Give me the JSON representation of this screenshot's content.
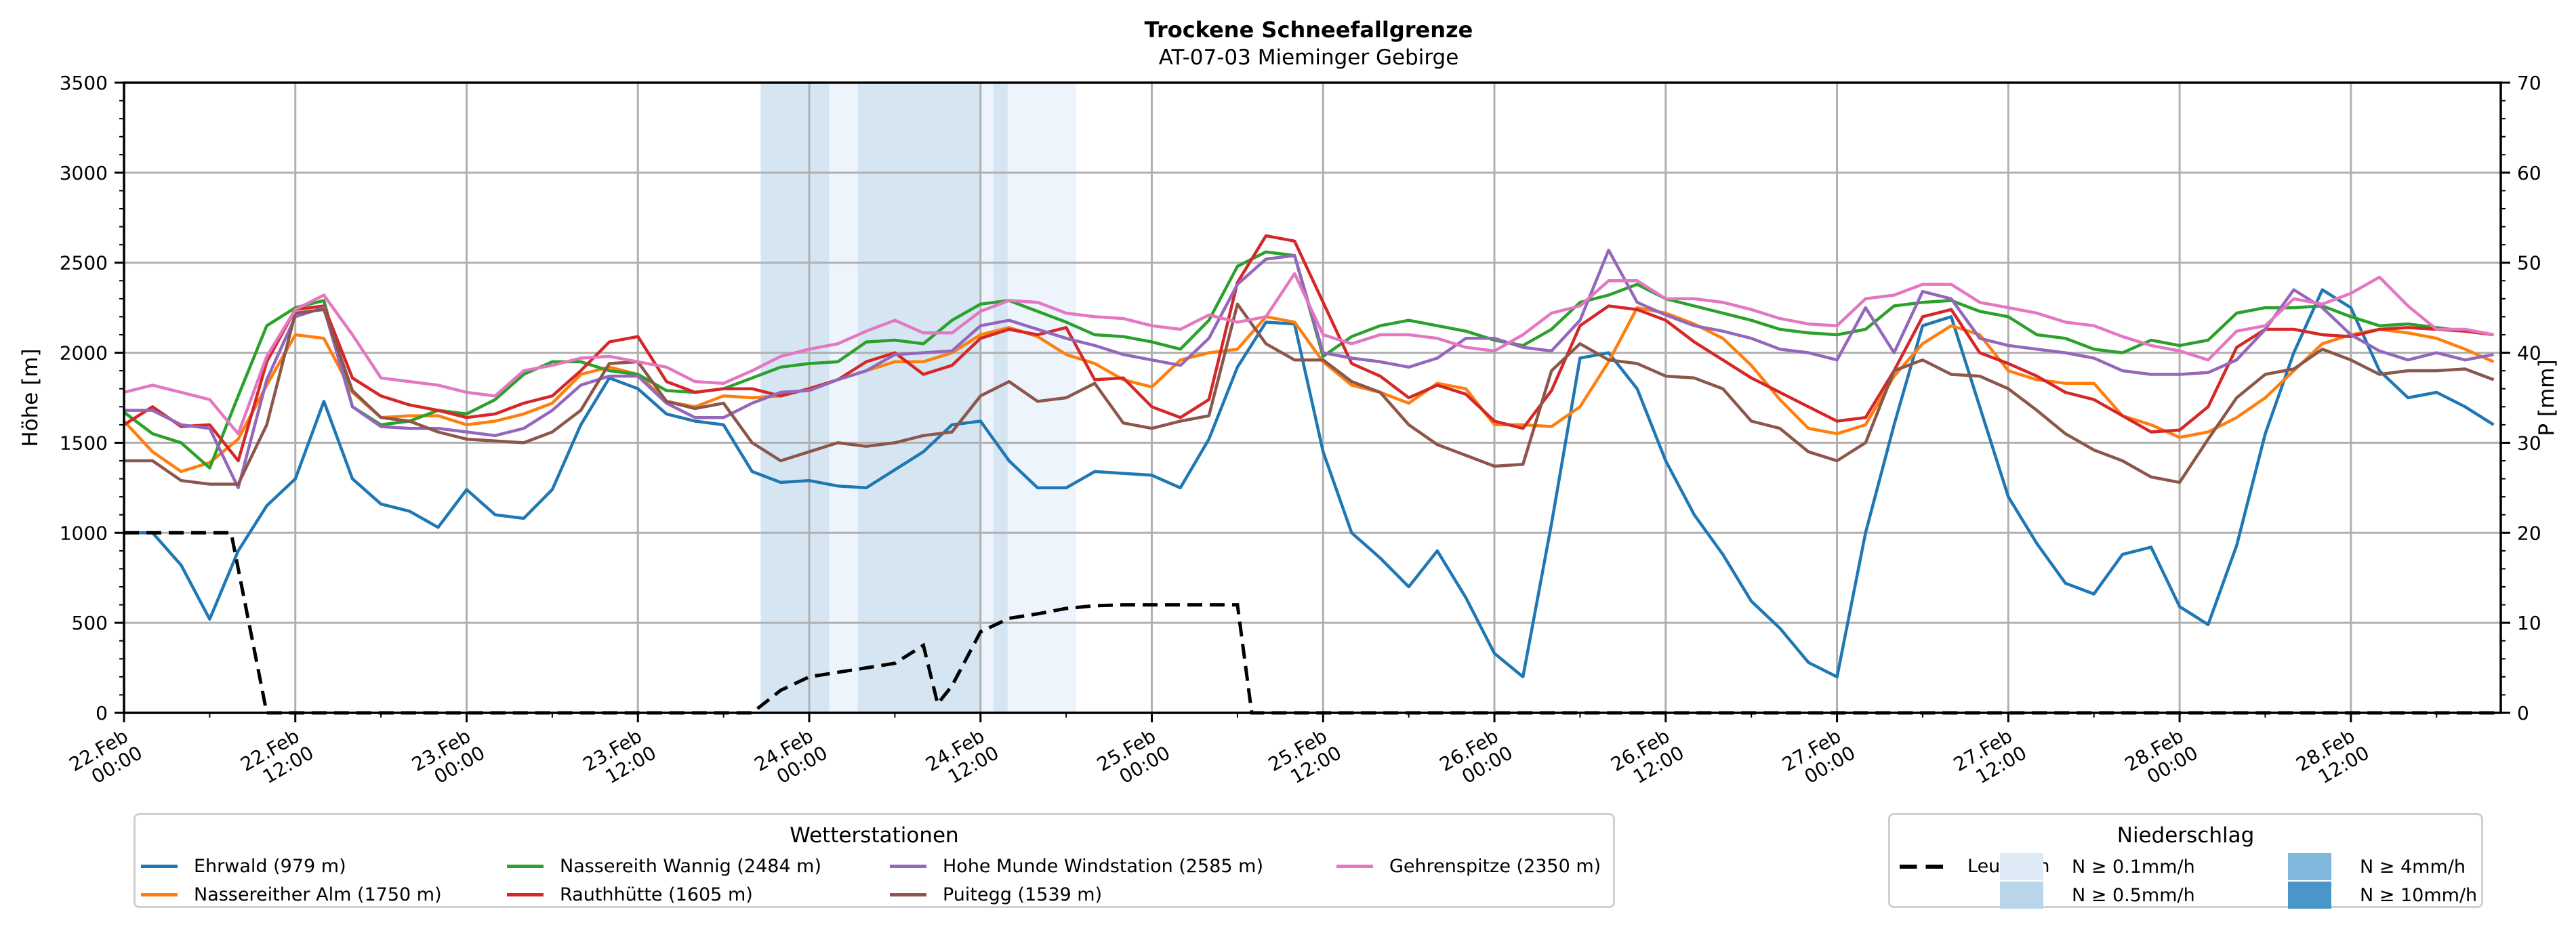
{
  "chart_data": {
    "type": "line",
    "title": "Trockene Schneefallgrenze",
    "subtitle": "AT-07-03 Mieminger Gebirge",
    "ylabel": "Höhe [m]",
    "y2label": "P [mm]",
    "ylim": [
      0,
      3500
    ],
    "y2lim": [
      0,
      70
    ],
    "xlim_hours": [
      0,
      166.5
    ],
    "grid": true,
    "y_ticks": [
      "0",
      "500",
      "1000",
      "1500",
      "2000",
      "2500",
      "3000",
      "3500"
    ],
    "y_tick_values": [
      0,
      500,
      1000,
      1500,
      2000,
      2500,
      3000,
      3500
    ],
    "y2_ticks": [
      "0",
      "10",
      "20",
      "30",
      "40",
      "50",
      "60",
      "70"
    ],
    "y2_tick_values": [
      0,
      10,
      20,
      30,
      40,
      50,
      60,
      70
    ],
    "x_ticks": [
      {
        "hour": 0,
        "line1": "22.Feb",
        "line2": "00:00"
      },
      {
        "hour": 12,
        "line1": "22.Feb",
        "line2": "12:00"
      },
      {
        "hour": 24,
        "line1": "23.Feb",
        "line2": "00:00"
      },
      {
        "hour": 36,
        "line1": "23.Feb",
        "line2": "12:00"
      },
      {
        "hour": 48,
        "line1": "24.Feb",
        "line2": "00:00"
      },
      {
        "hour": 60,
        "line1": "24.Feb",
        "line2": "12:00"
      },
      {
        "hour": 72,
        "line1": "25.Feb",
        "line2": "00:00"
      },
      {
        "hour": 84,
        "line1": "25.Feb",
        "line2": "12:00"
      },
      {
        "hour": 96,
        "line1": "26.Feb",
        "line2": "00:00"
      },
      {
        "hour": 108,
        "line1": "26.Feb",
        "line2": "12:00"
      },
      {
        "hour": 120,
        "line1": "27.Feb",
        "line2": "00:00"
      },
      {
        "hour": 132,
        "line1": "27.Feb",
        "line2": "12:00"
      },
      {
        "hour": 144,
        "line1": "28.Feb",
        "line2": "00:00"
      },
      {
        "hour": 156,
        "line1": "28.Feb",
        "line2": "12:00"
      }
    ],
    "x_hours": [
      0,
      2,
      4,
      6,
      8,
      10,
      12,
      14,
      16,
      18,
      20,
      22,
      24,
      26,
      28,
      30,
      32,
      34,
      36,
      38,
      40,
      42,
      44,
      46,
      48,
      50,
      52,
      54,
      56,
      58,
      60,
      62,
      64,
      66,
      68,
      70,
      72,
      74,
      76,
      78,
      80,
      82,
      84,
      86,
      88,
      90,
      92,
      94,
      96,
      98,
      100,
      102,
      104,
      106,
      108,
      110,
      112,
      114,
      116,
      118,
      120,
      122,
      124,
      126,
      128,
      130,
      132,
      134,
      136,
      138,
      140,
      142,
      144,
      146,
      148,
      150,
      152,
      154,
      156,
      158,
      160,
      162,
      164,
      166
    ],
    "series": [
      {
        "name": "Ehrwald (979 m)",
        "color": "#1f77b4",
        "values": [
          1000,
          1000,
          820,
          520,
          900,
          1150,
          1300,
          1730,
          1300,
          1160,
          1120,
          1030,
          1240,
          1100,
          1080,
          1240,
          1600,
          1860,
          1800,
          1660,
          1620,
          1600,
          1340,
          1280,
          1290,
          1260,
          1250,
          1350,
          1450,
          1600,
          1620,
          1400,
          1250,
          1250,
          1340,
          1330,
          1320,
          1250,
          1520,
          1920,
          2170,
          2160,
          1450,
          1000,
          860,
          700,
          900,
          640,
          330,
          200,
          1050,
          1970,
          2000,
          1800,
          1400,
          1100,
          880,
          620,
          470,
          280,
          200,
          1000,
          1600,
          2150,
          2200,
          1700,
          1200,
          940,
          720,
          660,
          880,
          920,
          590,
          490,
          930,
          1550,
          2000,
          2350,
          2250,
          1900,
          1750,
          1780,
          1700,
          1600
        ]
      },
      {
        "name": "Nassereither Alm (1750 m)",
        "color": "#ff7f0e",
        "values": [
          1620,
          1450,
          1340,
          1390,
          1520,
          1820,
          2100,
          2080,
          1780,
          1640,
          1650,
          1650,
          1600,
          1620,
          1660,
          1720,
          1880,
          1920,
          1880,
          1730,
          1700,
          1760,
          1750,
          1760,
          1800,
          1850,
          1900,
          1950,
          1950,
          2000,
          2100,
          2140,
          2090,
          1990,
          1940,
          1850,
          1810,
          1960,
          2000,
          2020,
          2200,
          2170,
          1950,
          1820,
          1780,
          1720,
          1830,
          1800,
          1600,
          1600,
          1590,
          1700,
          1950,
          2250,
          2220,
          2160,
          2080,
          1930,
          1740,
          1580,
          1550,
          1600,
          1870,
          2050,
          2150,
          2100,
          1900,
          1850,
          1830,
          1830,
          1650,
          1600,
          1530,
          1560,
          1640,
          1750,
          1900,
          2050,
          2100,
          2130,
          2110,
          2080,
          2020,
          1950
        ]
      },
      {
        "name": "Nassereith Wannig (2484 m)",
        "color": "#2ca02c",
        "values": [
          1670,
          1550,
          1500,
          1360,
          1760,
          2150,
          2250,
          2290,
          1700,
          1600,
          1620,
          1680,
          1660,
          1740,
          1880,
          1950,
          1950,
          1900,
          1880,
          1790,
          1780,
          1800,
          1860,
          1920,
          1940,
          1950,
          2060,
          2070,
          2050,
          2180,
          2270,
          2290,
          2230,
          2170,
          2100,
          2090,
          2060,
          2020,
          2180,
          2480,
          2560,
          2540,
          1980,
          2090,
          2150,
          2180,
          2150,
          2120,
          2070,
          2040,
          2130,
          2280,
          2320,
          2380,
          2300,
          2260,
          2220,
          2180,
          2130,
          2110,
          2100,
          2130,
          2260,
          2280,
          2290,
          2230,
          2200,
          2100,
          2080,
          2020,
          2000,
          2070,
          2040,
          2070,
          2220,
          2250,
          2250,
          2260,
          2200,
          2150,
          2160,
          2140,
          2120,
          2100
        ]
      },
      {
        "name": "Rauthhütte (1605 m)",
        "color": "#d62728",
        "values": [
          1600,
          1700,
          1590,
          1600,
          1400,
          1950,
          2240,
          2260,
          1860,
          1760,
          1710,
          1680,
          1640,
          1660,
          1720,
          1760,
          1900,
          2060,
          2090,
          1840,
          1780,
          1800,
          1800,
          1760,
          1800,
          1850,
          1950,
          2000,
          1880,
          1930,
          2080,
          2130,
          2100,
          2140,
          1850,
          1860,
          1700,
          1640,
          1740,
          2390,
          2650,
          2620,
          2280,
          1940,
          1870,
          1750,
          1820,
          1770,
          1620,
          1580,
          1790,
          2150,
          2260,
          2240,
          2180,
          2060,
          1960,
          1860,
          1780,
          1700,
          1620,
          1640,
          1900,
          2200,
          2240,
          2000,
          1940,
          1870,
          1780,
          1740,
          1650,
          1560,
          1570,
          1700,
          2030,
          2130,
          2130,
          2100,
          2090,
          2130,
          2140,
          2130,
          2120,
          2100
        ]
      },
      {
        "name": "Hohe Munde Windstation (2585 m)",
        "color": "#9467bd",
        "values": [
          1680,
          1680,
          1600,
          1580,
          1250,
          1850,
          2200,
          2250,
          1700,
          1590,
          1580,
          1580,
          1560,
          1540,
          1580,
          1680,
          1820,
          1870,
          1870,
          1720,
          1640,
          1640,
          1720,
          1780,
          1790,
          1850,
          1900,
          1990,
          2000,
          2010,
          2150,
          2180,
          2130,
          2080,
          2040,
          1990,
          1960,
          1930,
          2080,
          2380,
          2520,
          2540,
          2000,
          1970,
          1950,
          1920,
          1970,
          2080,
          2080,
          2030,
          2010,
          2180,
          2570,
          2280,
          2210,
          2150,
          2120,
          2080,
          2020,
          2000,
          1960,
          2250,
          2000,
          2340,
          2300,
          2080,
          2040,
          2020,
          2000,
          1970,
          1900,
          1880,
          1880,
          1890,
          1960,
          2130,
          2350,
          2250,
          2100,
          2010,
          1960,
          2000,
          1960,
          1990
        ]
      },
      {
        "name": "Puitegg (1539 m)",
        "color": "#8c564b",
        "values": [
          1400,
          1400,
          1290,
          1270,
          1270,
          1600,
          2220,
          2240,
          1790,
          1640,
          1620,
          1560,
          1520,
          1510,
          1500,
          1560,
          1680,
          1940,
          1950,
          1730,
          1690,
          1720,
          1500,
          1400,
          1450,
          1500,
          1480,
          1500,
          1540,
          1560,
          1760,
          1840,
          1730,
          1750,
          1830,
          1610,
          1580,
          1620,
          1650,
          2270,
          2050,
          1960,
          1960,
          1840,
          1780,
          1600,
          1490,
          1430,
          1370,
          1380,
          1900,
          2050,
          1960,
          1940,
          1870,
          1860,
          1800,
          1620,
          1580,
          1450,
          1400,
          1500,
          1900,
          1960,
          1880,
          1870,
          1800,
          1680,
          1550,
          1460,
          1400,
          1310,
          1280,
          1520,
          1750,
          1880,
          1910,
          2020,
          1960,
          1880,
          1900,
          1900,
          1910,
          1850
        ]
      },
      {
        "name": "Gehrenspitze (2350 m)",
        "color": "#e377c2",
        "values": [
          1780,
          1820,
          1780,
          1740,
          1550,
          1980,
          2240,
          2320,
          2100,
          1860,
          1840,
          1820,
          1780,
          1760,
          1900,
          1930,
          1970,
          1980,
          1950,
          1920,
          1840,
          1830,
          1900,
          1980,
          2020,
          2050,
          2120,
          2180,
          2110,
          2110,
          2230,
          2290,
          2280,
          2220,
          2200,
          2190,
          2150,
          2130,
          2210,
          2170,
          2200,
          2440,
          2100,
          2050,
          2100,
          2100,
          2080,
          2030,
          2010,
          2100,
          2220,
          2260,
          2400,
          2400,
          2300,
          2300,
          2280,
          2240,
          2190,
          2160,
          2150,
          2300,
          2320,
          2380,
          2380,
          2280,
          2250,
          2220,
          2170,
          2150,
          2090,
          2040,
          2010,
          1960,
          2120,
          2150,
          2300,
          2270,
          2330,
          2420,
          2260,
          2130,
          2130,
          2100
        ]
      }
    ],
    "leutasch": {
      "name": "Leutasch",
      "axis": "right",
      "hours": [
        0,
        6,
        7.5,
        10,
        44,
        46,
        48,
        50,
        52,
        54,
        56,
        57,
        58,
        60,
        62,
        64,
        66,
        68,
        70,
        72,
        74,
        76,
        78,
        79,
        80,
        82,
        84,
        100,
        120,
        140,
        160,
        166.5
      ],
      "values": [
        20,
        20,
        20,
        0,
        0,
        2.5,
        4,
        4.5,
        5,
        5.5,
        7.5,
        1,
        3,
        9,
        10.5,
        11,
        11.6,
        11.9,
        12,
        12,
        12,
        12,
        12,
        0,
        0,
        0,
        0,
        0,
        0,
        0,
        0,
        0
      ]
    },
    "precipitation_bands": [
      {
        "start_hour": 44.6,
        "end_hour": 49.4,
        "class": "N ≥ 0.5mm/h"
      },
      {
        "start_hour": 49.4,
        "end_hour": 51.4,
        "class": "N ≥ 0.1mm/h"
      },
      {
        "start_hour": 51.4,
        "end_hour": 60.0,
        "class": "N ≥ 0.5mm/h"
      },
      {
        "start_hour": 60.0,
        "end_hour": 60.9,
        "class": "N ≥ 0.1mm/h"
      },
      {
        "start_hour": 60.9,
        "end_hour": 61.9,
        "class": "N ≥ 0.5mm/h"
      },
      {
        "start_hour": 61.9,
        "end_hour": 66.7,
        "class": "N ≥ 0.1mm/h"
      }
    ],
    "precip_classes": [
      {
        "label": "N ≥ 0.1mm/h",
        "color": "#deebf7"
      },
      {
        "label": "N ≥ 0.5mm/h",
        "color": "#b9d5ea"
      },
      {
        "label": "N ≥ 4mm/h",
        "color": "#81b7da"
      },
      {
        "label": "N ≥ 10mm/h",
        "color": "#4a96c9"
      }
    ],
    "legend_stations_title": "Wetterstationen",
    "legend_precip_title": "Niederschlag",
    "legend_placement": "bottom"
  }
}
